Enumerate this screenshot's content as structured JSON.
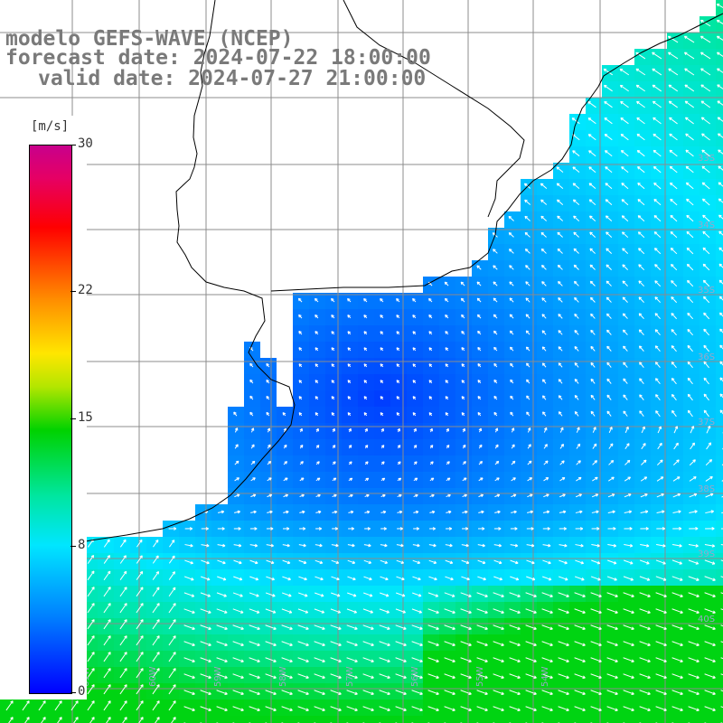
{
  "title": {
    "line1": "modelo GEFS-WAVE (NCEP)",
    "line2": "forecast date: 2024-07-22 18:00:00",
    "line3": "valid date: 2024-07-27 21:00:00"
  },
  "colorbar": {
    "unit": "[m/s]",
    "ticks": [
      "30",
      "22",
      "15",
      "8",
      "0"
    ],
    "tick_values": [
      30,
      22,
      15,
      8,
      0
    ],
    "range": [
      0,
      30
    ],
    "colors": [
      "#0000ff",
      "#0080ff",
      "#00e6ff",
      "#00d200",
      "#ffe600",
      "#ff8c00",
      "#ff0000",
      "#c8008c"
    ]
  },
  "map": {
    "field": "wind speed with direction arrows",
    "land_color": "#ffffff",
    "coastline_color": "#000000",
    "grid_color": "#8c8c8c",
    "lat_labels": [
      "33S",
      "34S",
      "35S",
      "36S",
      "37S",
      "38S",
      "39S",
      "40S"
    ],
    "lon_labels": [
      "61W",
      "60W",
      "59W",
      "58W",
      "57W",
      "56W",
      "55W",
      "54W"
    ]
  }
}
